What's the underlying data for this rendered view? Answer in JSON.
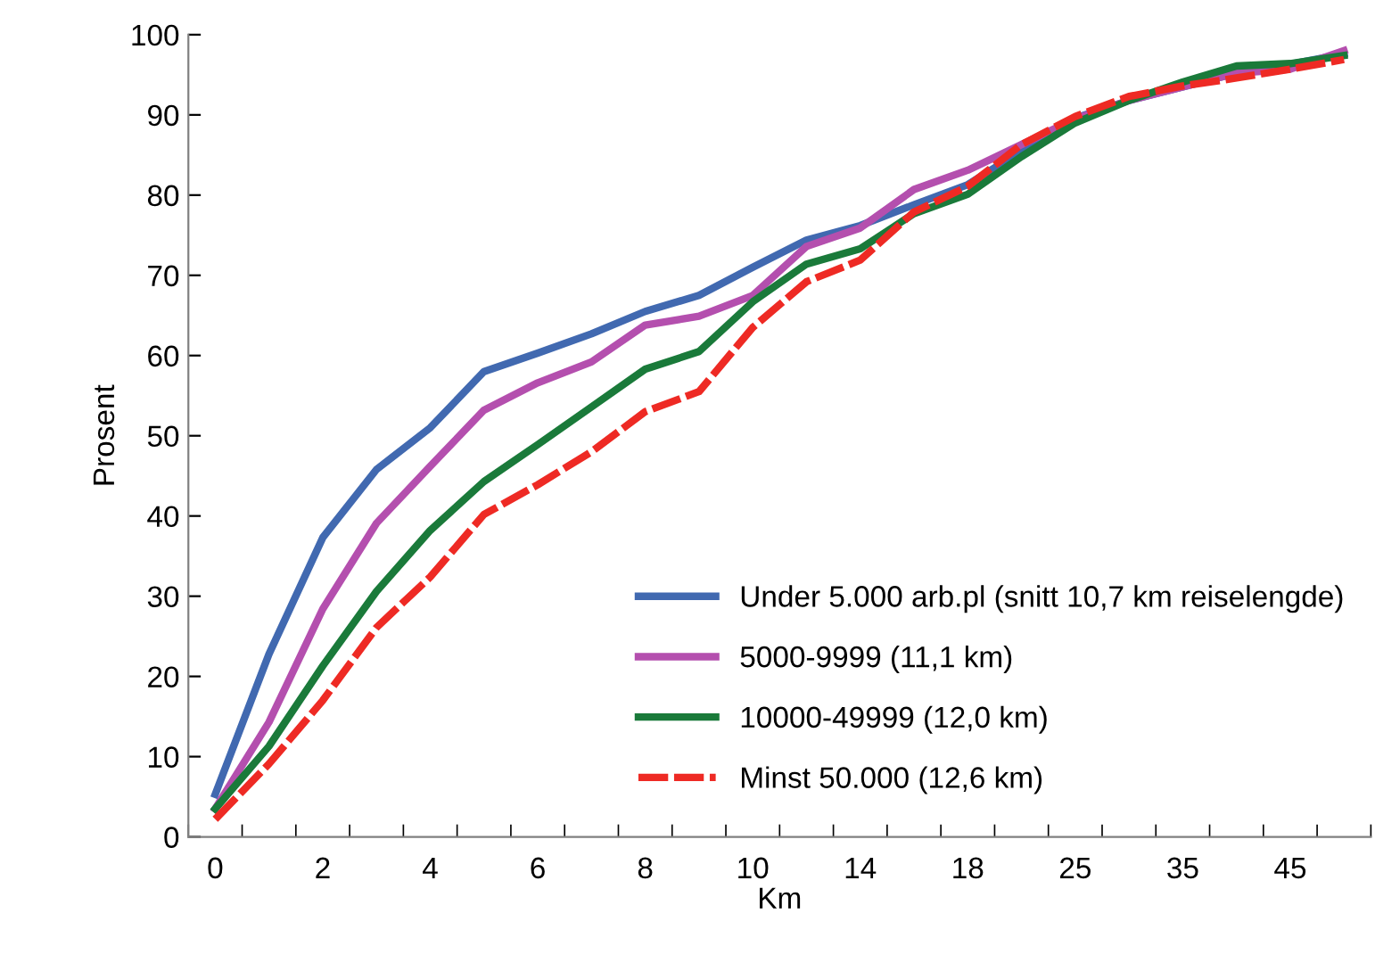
{
  "chart_data": {
    "type": "line",
    "xlabel": "Km",
    "ylabel": "Prosent",
    "categories": [
      "0",
      null,
      "2",
      null,
      "4",
      null,
      "6",
      null,
      "8",
      null,
      "10",
      null,
      "14",
      null,
      "18",
      null,
      "25",
      null,
      "35",
      null,
      "45",
      null
    ],
    "ylim": [
      0,
      100
    ],
    "yticks": [
      0,
      10,
      20,
      30,
      40,
      50,
      60,
      70,
      80,
      90,
      100
    ],
    "grid": false,
    "legend": "bottom right",
    "series": [
      {
        "name": "Under 5.000 arb.pl (snitt 10,7 km reiselengde)",
        "color": "#4169b0",
        "values": [
          5.3,
          22.8,
          37.3,
          45.8,
          51,
          58,
          60.3,
          62.7,
          65.5,
          67.5,
          71,
          74.4,
          76.2,
          78.8,
          81.3,
          85.5,
          89.6,
          91.8,
          93.5,
          95.2,
          96.3,
          97.6
        ]
      },
      {
        "name": "5000-9999 (11,1 km)",
        "color": "#b44fae",
        "values": [
          3.5,
          14.3,
          28.4,
          39.1,
          46.2,
          53.2,
          56.6,
          59.2,
          63.8,
          64.9,
          67.5,
          73.6,
          75.9,
          80.7,
          83.1,
          86.3,
          89.5,
          91.8,
          93.5,
          95.2,
          95.7,
          98
        ]
      },
      {
        "name": "10000-49999 (12,0 km)",
        "color": "#1a7a3a",
        "values": [
          3.5,
          11.3,
          21.3,
          30.6,
          38.2,
          44.3,
          48.9,
          53.6,
          58.3,
          60.5,
          66.7,
          71.4,
          73.3,
          77.7,
          80.1,
          84.8,
          89,
          91.8,
          94.1,
          96.1,
          96.4,
          97.4
        ]
      },
      {
        "name": "Minst 50.000 (12,6 km)",
        "color": "#ee2a24",
        "line_style": "dashed",
        "values": [
          2.2,
          9.1,
          17,
          26.1,
          32.4,
          40.2,
          43.9,
          48,
          53,
          55.5,
          63.5,
          69.2,
          71.9,
          77.9,
          81.1,
          86.3,
          89.8,
          92.3,
          93.6,
          94.6,
          95.7,
          96.9
        ]
      }
    ]
  }
}
